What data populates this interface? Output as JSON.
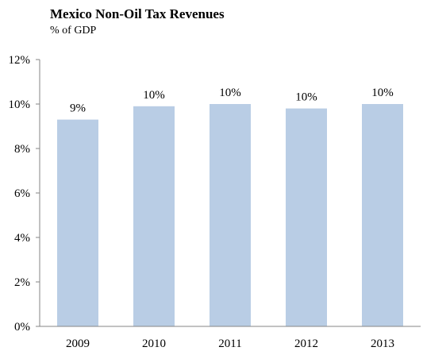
{
  "chart_data": {
    "type": "bar",
    "title": "Mexico Non-Oil Tax Revenues",
    "subtitle": "% of GDP",
    "categories": [
      "2009",
      "2010",
      "2011",
      "2012",
      "2013"
    ],
    "values": [
      9.3,
      9.9,
      10.0,
      9.8,
      10.0
    ],
    "data_labels": [
      "9%",
      "10%",
      "10%",
      "10%",
      "10%"
    ],
    "xlabel": "",
    "ylabel": "",
    "ylim": [
      0,
      12
    ],
    "yticks": [
      0,
      2,
      4,
      6,
      8,
      10,
      12
    ],
    "ytick_labels": [
      "0%",
      "2%",
      "4%",
      "6%",
      "8%",
      "10%",
      "12%"
    ],
    "grid": false,
    "legend": "none",
    "colors": {
      "bar": "#b9cde5",
      "axis": "#868686"
    }
  }
}
